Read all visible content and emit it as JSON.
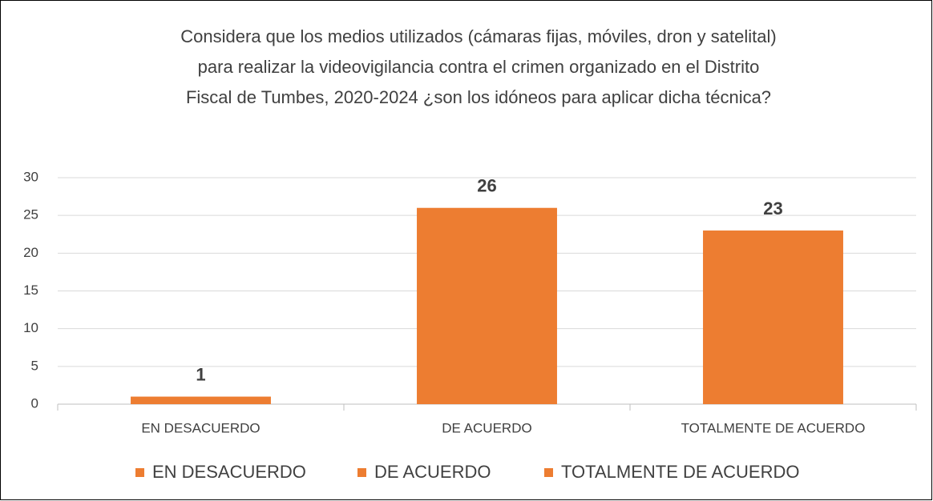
{
  "chart_data": {
    "type": "bar",
    "title": [
      "Considera que los medios utilizados (cámaras fijas, móviles, dron y satelital)",
      "para realizar la videovigilancia contra el crimen organizado en el Distrito",
      "Fiscal de Tumbes, 2020-2024 ¿son los idóneos para aplicar dicha técnica?"
    ],
    "categories": [
      "EN DESACUERDO",
      "DE ACUERDO",
      "TOTALMENTE DE ACUERDO"
    ],
    "values": [
      1,
      26,
      23
    ],
    "color": "#ed7d31",
    "ylim": [
      0,
      30
    ],
    "yticks": [
      0,
      5,
      10,
      15,
      20,
      25,
      30
    ],
    "grid": true,
    "legend": "bottom"
  }
}
